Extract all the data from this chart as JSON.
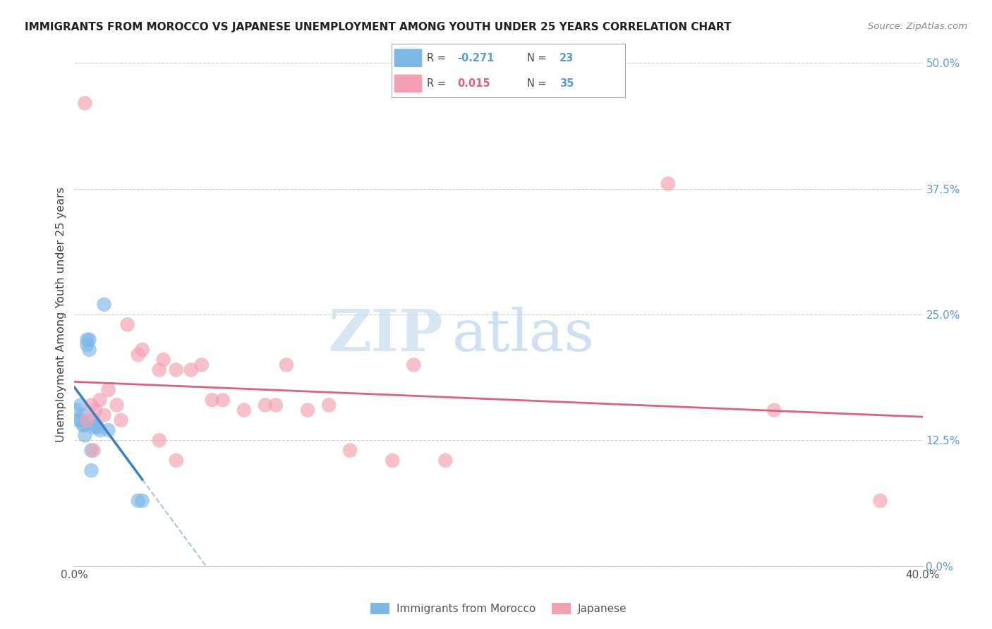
{
  "title": "IMMIGRANTS FROM MOROCCO VS JAPANESE UNEMPLOYMENT AMONG YOUTH UNDER 25 YEARS CORRELATION CHART",
  "source": "Source: ZipAtlas.com",
  "ylabel": "Unemployment Among Youth under 25 years",
  "xlim": [
    0.0,
    0.4
  ],
  "ylim": [
    0.0,
    0.5
  ],
  "yticks_right": [
    0.0,
    0.125,
    0.25,
    0.375,
    0.5
  ],
  "ytick_labels_right": [
    "0.0%",
    "12.5%",
    "25.0%",
    "37.5%",
    "50.0%"
  ],
  "blue_color": "#7eb8e8",
  "pink_color": "#f4a0b0",
  "blue_trend_color": "#3e7fbf",
  "pink_trend_color": "#e0607a",
  "blue_R": -0.271,
  "blue_N": 23,
  "pink_R": 0.015,
  "pink_N": 35,
  "blue_scatter_x": [
    0.001,
    0.002,
    0.003,
    0.003,
    0.004,
    0.004,
    0.005,
    0.005,
    0.006,
    0.006,
    0.007,
    0.007,
    0.008,
    0.008,
    0.009,
    0.009,
    0.01,
    0.011,
    0.012,
    0.014,
    0.016,
    0.03,
    0.032
  ],
  "blue_scatter_y": [
    0.155,
    0.145,
    0.145,
    0.16,
    0.14,
    0.15,
    0.13,
    0.14,
    0.225,
    0.22,
    0.215,
    0.225,
    0.115,
    0.095,
    0.138,
    0.145,
    0.14,
    0.138,
    0.135,
    0.26,
    0.135,
    0.065,
    0.065
  ],
  "pink_scatter_x": [
    0.01,
    0.012,
    0.014,
    0.016,
    0.02,
    0.022,
    0.025,
    0.03,
    0.032,
    0.04,
    0.042,
    0.048,
    0.055,
    0.06,
    0.065,
    0.07,
    0.08,
    0.09,
    0.095,
    0.1,
    0.11,
    0.12,
    0.13,
    0.15,
    0.16,
    0.175,
    0.28,
    0.33,
    0.38,
    0.005,
    0.006,
    0.008,
    0.009,
    0.04,
    0.048
  ],
  "pink_scatter_y": [
    0.155,
    0.165,
    0.15,
    0.175,
    0.16,
    0.145,
    0.24,
    0.21,
    0.215,
    0.195,
    0.205,
    0.195,
    0.195,
    0.2,
    0.165,
    0.165,
    0.155,
    0.16,
    0.16,
    0.2,
    0.155,
    0.16,
    0.115,
    0.105,
    0.2,
    0.105,
    0.38,
    0.155,
    0.065,
    0.46,
    0.145,
    0.16,
    0.115,
    0.125,
    0.105
  ],
  "watermark_zip": "ZIP",
  "watermark_atlas": "atlas",
  "background_color": "#ffffff",
  "legend_labels": [
    "Immigrants from Morocco",
    "Japanese"
  ],
  "blue_trend_start_y": 0.158,
  "blue_trend_end_x": 0.013,
  "blue_trend_end_y": 0.13,
  "pink_trend_start_y": 0.148,
  "pink_trend_end_y": 0.152
}
